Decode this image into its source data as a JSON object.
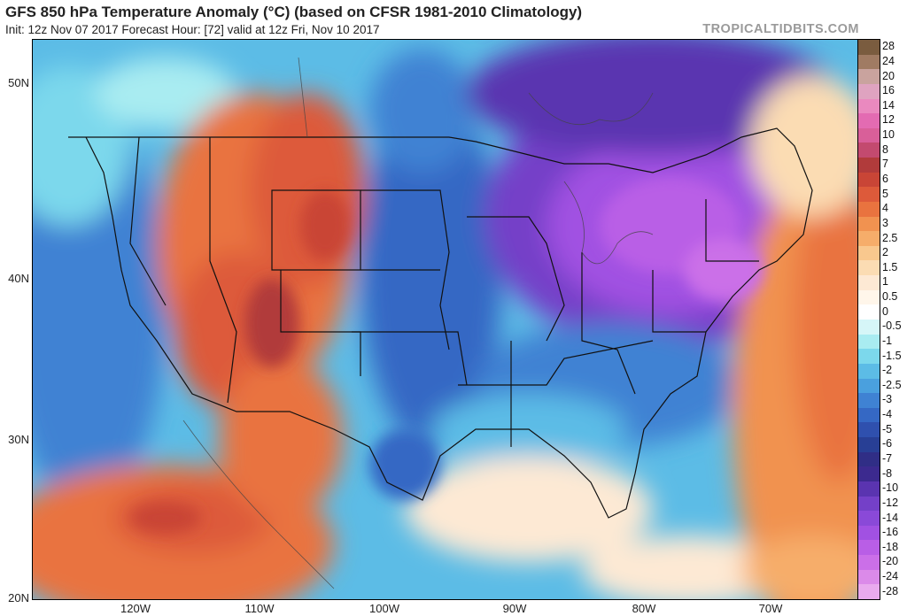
{
  "header": {
    "title": "GFS 850 hPa Temperature Anomaly (°C) (based on CFSR 1981-2010 Climatology)",
    "subtitle": "Init: 12z Nov 07 2017   Forecast Hour: [72]   valid at 12z Fri, Nov 10 2017",
    "brand": "TROPICALTIDBITS.COM"
  },
  "latitude_labels": [
    "50N",
    "40N",
    "30N",
    "20N"
  ],
  "longitude_labels": [
    "120W",
    "110W",
    "100W",
    "90W",
    "80W",
    "70W"
  ],
  "legend": {
    "labels": [
      "28",
      "24",
      "20",
      "16",
      "14",
      "12",
      "10",
      "8",
      "7",
      "6",
      "5",
      "4",
      "3",
      "2.5",
      "2",
      "1.5",
      "1",
      "0.5",
      "0",
      "-0.5",
      "-1",
      "-1.5",
      "-2",
      "-2.5",
      "-3",
      "-4",
      "-5",
      "-6",
      "-7",
      "-8",
      "-10",
      "-12",
      "-14",
      "-16",
      "-18",
      "-20",
      "-24",
      "-28"
    ],
    "colors": [
      "#7a5c3f",
      "#a07b63",
      "#c9a39e",
      "#dfa3c0",
      "#ea89bf",
      "#e36bb2",
      "#d95f99",
      "#c34a6f",
      "#b13b3b",
      "#c94536",
      "#dd5a3a",
      "#e9733f",
      "#f19250",
      "#f6ad6a",
      "#f9c88e",
      "#fbdcb3",
      "#fde9d4",
      "#fff6ea",
      "#ffffff",
      "#d6f6f8",
      "#a9ecf1",
      "#7cd8ec",
      "#5cbce6",
      "#4aa0de",
      "#3f82d3",
      "#3568c4",
      "#2f50ae",
      "#283f95",
      "#302e86",
      "#3c2a8f",
      "#5a34b0",
      "#7440c8",
      "#8a49d8",
      "#a151e2",
      "#b95ee6",
      "#cb6fe8",
      "#db8ae9",
      "#e9aaee"
    ]
  }
}
